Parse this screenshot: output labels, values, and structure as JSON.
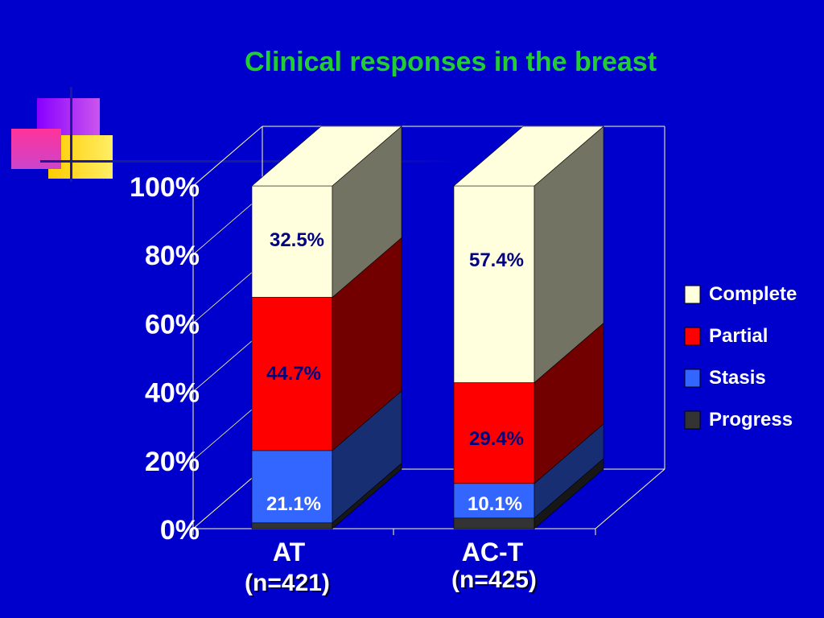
{
  "chart_data": {
    "type": "bar",
    "stacked": true,
    "three_d": true,
    "title": "Clinical responses in the breast",
    "categories": [
      "AT",
      "AC-T"
    ],
    "category_sublabels": [
      "(n=421)",
      "(n=425)"
    ],
    "series": [
      {
        "name": "Progress",
        "values": [
          1.7,
          3.1
        ],
        "color": "#333333",
        "data_labels": [
          "",
          ""
        ]
      },
      {
        "name": "Stasis",
        "values": [
          21.1,
          10.1
        ],
        "color": "#3366ff",
        "data_labels": [
          "21.1%",
          "10.1%"
        ]
      },
      {
        "name": "Partial",
        "values": [
          44.7,
          29.4
        ],
        "color": "#ff0000",
        "data_labels": [
          "44.7%",
          "29.4%"
        ]
      },
      {
        "name": "Complete",
        "values": [
          32.5,
          57.4
        ],
        "color": "#ffffdd",
        "data_labels": [
          "32.5%",
          "57.4%"
        ]
      }
    ],
    "yticks": [
      "0%",
      "20%",
      "40%",
      "60%",
      "80%",
      "100%"
    ],
    "ylim": [
      0,
      100
    ],
    "legend_position": "right",
    "grid": false
  },
  "colors": {
    "background": "#0000cc",
    "title": "#22cc33",
    "axis_text": "#ffffff",
    "data_label_dark": "#000080",
    "data_label_light": "#ffffff",
    "frame": "#ffffaa"
  }
}
